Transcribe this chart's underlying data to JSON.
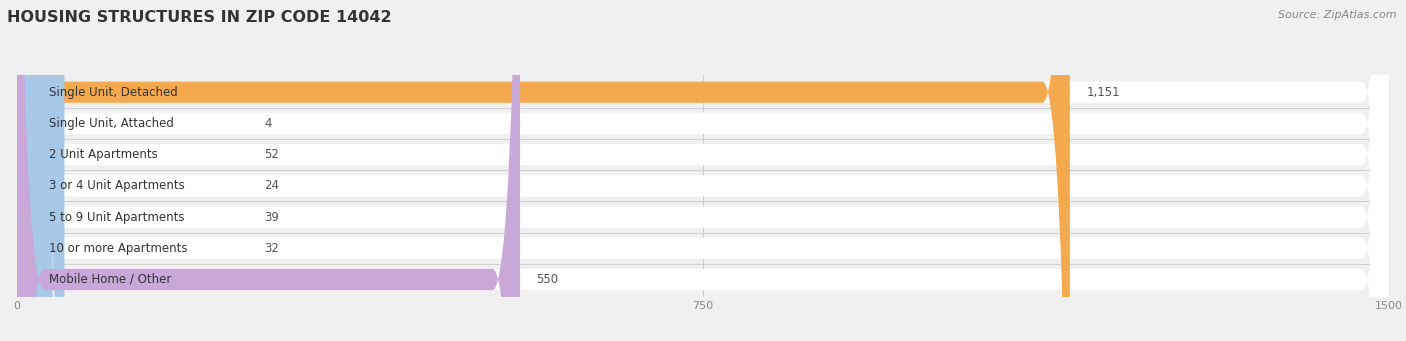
{
  "title": "HOUSING STRUCTURES IN ZIP CODE 14042",
  "source": "Source: ZipAtlas.com",
  "categories": [
    "Single Unit, Detached",
    "Single Unit, Attached",
    "2 Unit Apartments",
    "3 or 4 Unit Apartments",
    "5 to 9 Unit Apartments",
    "10 or more Apartments",
    "Mobile Home / Other"
  ],
  "values": [
    1151,
    4,
    52,
    24,
    39,
    32,
    550
  ],
  "bar_colors": [
    "#F5A94E",
    "#F4A0A0",
    "#A8C8E8",
    "#A8C8E8",
    "#A8C8E8",
    "#A8C8E8",
    "#C8A8D8"
  ],
  "background_color": "#f0f0f0",
  "bar_bg_color": "#ffffff",
  "row_bg_color": "#f0f0f0",
  "xlim_max": 1500,
  "xticks": [
    0,
    750,
    1500
  ],
  "title_fontsize": 11.5,
  "label_fontsize": 8.5,
  "value_fontsize": 8.5,
  "bar_height": 0.68,
  "value_labels": [
    "1,151",
    "4",
    "52",
    "24",
    "39",
    "32",
    "550"
  ]
}
